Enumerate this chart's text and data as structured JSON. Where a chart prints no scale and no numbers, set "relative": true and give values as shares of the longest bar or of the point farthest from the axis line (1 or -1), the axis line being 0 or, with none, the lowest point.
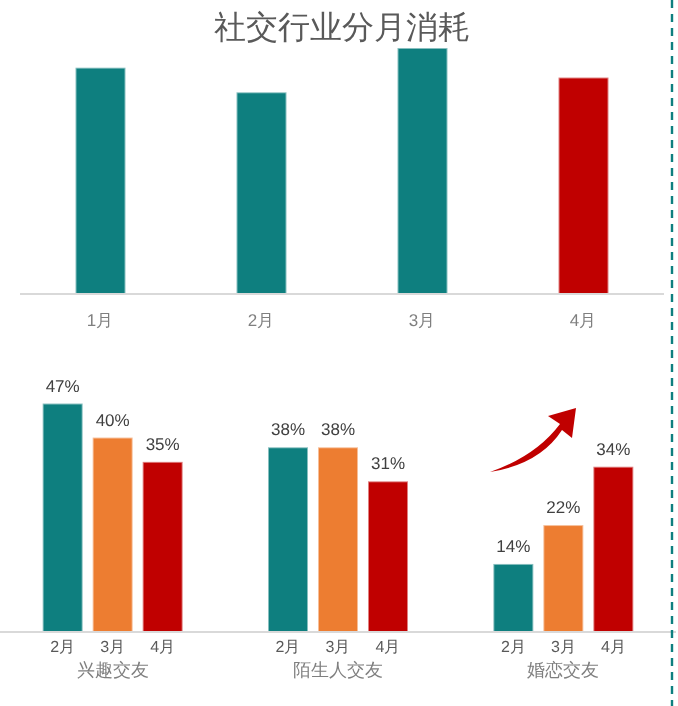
{
  "chart_data": [
    {
      "type": "bar",
      "title": "社交行业分月消耗",
      "categories": [
        "1月",
        "2月",
        "3月",
        "4月"
      ],
      "values": [
        0.92,
        0.82,
        1,
        0.88
      ],
      "colors": [
        "#0e7f7f",
        "#0e7f7f",
        "#0e7f7f",
        "#c00000"
      ],
      "relative": true
    },
    {
      "type": "bar",
      "categories": [
        "兴趣交友",
        "陌生人交友",
        "婚恋交友"
      ],
      "tick_labels": "x",
      "series": [
        {
          "name": "2月",
          "color": "#0e7f7f",
          "values": [
            47,
            38,
            14
          ],
          "value_labels": [
            "47%",
            "38%",
            "14%"
          ]
        },
        {
          "name": "3月",
          "color": "#ed7d31",
          "values": [
            40,
            38,
            22
          ],
          "value_labels": [
            "40%",
            "38%",
            "22%"
          ]
        },
        {
          "name": "4月",
          "color": "#c00000",
          "values": [
            35,
            31,
            34
          ],
          "value_labels": [
            "35%",
            "31%",
            "34%"
          ]
        }
      ]
    }
  ]
}
